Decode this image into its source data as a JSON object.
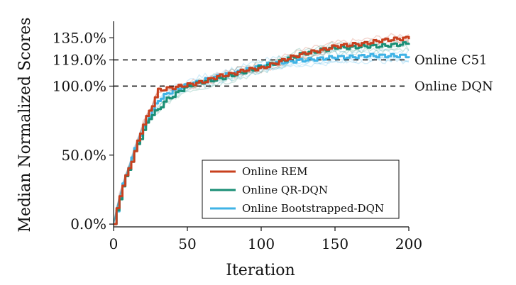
{
  "chart_data": {
    "type": "line",
    "title": "",
    "xlabel": "Iteration",
    "ylabel": "Median Normalized Scores",
    "xlim": [
      0,
      200
    ],
    "ylim": [
      -2,
      147
    ],
    "x_ticks": [
      {
        "value": 0,
        "label": "0"
      },
      {
        "value": 50,
        "label": "50"
      },
      {
        "value": 100,
        "label": "100"
      },
      {
        "value": 150,
        "label": "150"
      },
      {
        "value": 200,
        "label": "200"
      }
    ],
    "y_ticks": [
      {
        "value": 0,
        "label": "0.0%"
      },
      {
        "value": 50,
        "label": "50.0%"
      },
      {
        "value": 100,
        "label": "100.0%"
      },
      {
        "value": 119,
        "label": "119.0%"
      },
      {
        "value": 135,
        "label": "135.0%"
      }
    ],
    "reference_lines": [
      {
        "y": 119,
        "label": "Online C51"
      },
      {
        "y": 100,
        "label": "Online DQN"
      }
    ],
    "legend_position": "lower-right",
    "series": [
      {
        "name": "Online REM",
        "color": "#c8401e",
        "x": [
          0,
          5,
          10,
          15,
          20,
          25,
          30,
          35,
          40,
          45,
          50,
          60,
          70,
          80,
          90,
          100,
          110,
          120,
          130,
          140,
          150,
          160,
          170,
          180,
          190,
          200
        ],
        "values": [
          0,
          26,
          40,
          56,
          73,
          84,
          97,
          98,
          99,
          100,
          101,
          103,
          107,
          109,
          112,
          113,
          117,
          121,
          124,
          126,
          129,
          130,
          131,
          133,
          134,
          135
        ]
      },
      {
        "name": "Online QR-DQN",
        "color": "#1a8f76",
        "x": [
          0,
          5,
          10,
          15,
          20,
          25,
          30,
          35,
          40,
          45,
          50,
          60,
          70,
          80,
          90,
          100,
          110,
          120,
          130,
          140,
          150,
          160,
          170,
          180,
          190,
          200
        ],
        "values": [
          0,
          24,
          40,
          55,
          68,
          79,
          83,
          90,
          93,
          97,
          100,
          103,
          105,
          108,
          111,
          114,
          117,
          121,
          124,
          126,
          128,
          128,
          129,
          129,
          130,
          131
        ]
      },
      {
        "name": "Online Bootstrapped-DQN",
        "color": "#3fb3e6",
        "x": [
          0,
          5,
          10,
          15,
          20,
          25,
          30,
          35,
          40,
          45,
          50,
          60,
          70,
          80,
          90,
          100,
          110,
          120,
          130,
          140,
          150,
          160,
          170,
          180,
          190,
          200
        ],
        "values": [
          0,
          25,
          42,
          57,
          70,
          81,
          90,
          94,
          97,
          99,
          101,
          104,
          107,
          109,
          112,
          115,
          117,
          118,
          119,
          120,
          121,
          121,
          122,
          122,
          122,
          122
        ]
      }
    ]
  }
}
